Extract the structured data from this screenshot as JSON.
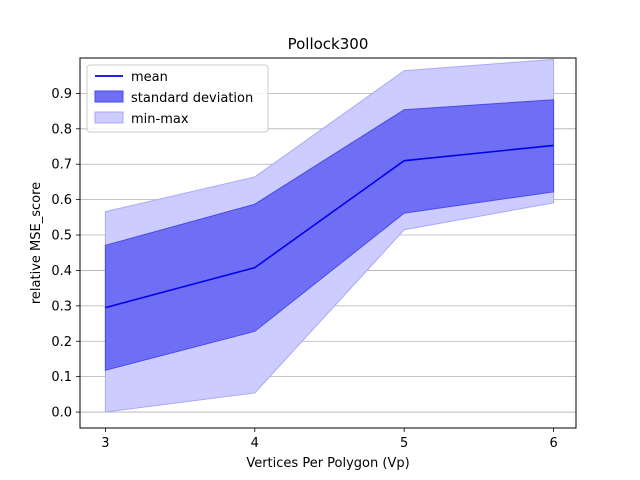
{
  "chart_data": {
    "type": "area",
    "title": "Pollock300",
    "xlabel": "Vertices Per Polygon (Vp)",
    "ylabel": "relative MSE_score",
    "x": [
      3,
      4,
      5,
      6
    ],
    "xlim": [
      2.83,
      6.15
    ],
    "ylim": [
      -0.045,
      1.0
    ],
    "x_ticks": [
      3,
      4,
      5,
      6
    ],
    "y_ticks": [
      0.0,
      0.1,
      0.2,
      0.3,
      0.4,
      0.5,
      0.6,
      0.7,
      0.8,
      0.9
    ],
    "y_tick_labels": [
      "0.0",
      "0.1",
      "0.2",
      "0.3",
      "0.4",
      "0.5",
      "0.6",
      "0.7",
      "0.8",
      "0.9"
    ],
    "x_tick_labels": [
      "3",
      "4",
      "5",
      "6"
    ],
    "grid": "horizontal",
    "legend_position": "top-left",
    "series": [
      {
        "name": "mean",
        "kind": "line",
        "color": "#0000ee",
        "values": [
          0.295,
          0.408,
          0.71,
          0.753
        ]
      },
      {
        "name": "standard deviation",
        "kind": "band",
        "color": "#6f6ff5",
        "lower": [
          0.118,
          0.228,
          0.562,
          0.622
        ],
        "upper": [
          0.471,
          0.587,
          0.854,
          0.882
        ]
      },
      {
        "name": "min-max",
        "kind": "band",
        "color": "#ccccff",
        "lower": [
          0.0,
          0.054,
          0.515,
          0.591
        ],
        "upper": [
          0.566,
          0.664,
          0.964,
          0.996
        ]
      }
    ]
  }
}
